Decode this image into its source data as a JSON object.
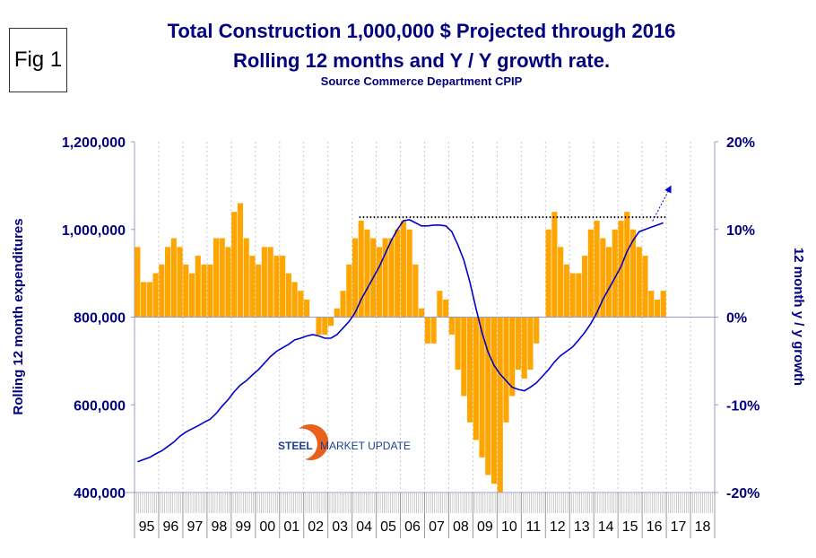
{
  "figure_label": "Fig 1",
  "logo": {
    "text_bold": "STEEL",
    "text_rest": "MARKET UPDATE"
  },
  "chart_data": {
    "type": "bar+line",
    "title": "Total Construction 1,000,000 $ Projected through 2016",
    "subtitle": "Rolling 12 months and Y / Y growth rate.",
    "source": "Source Commerce Department CPIP",
    "ylabel": "Rolling 12 month expenditures",
    "y2label": "12 month y / y growth",
    "ylim": [
      400000,
      1200000
    ],
    "y2lim": [
      -20,
      20
    ],
    "yticks": [
      "400,000",
      "600,000",
      "800,000",
      "1,000,000",
      "1,200,000"
    ],
    "y2ticks": [
      "-20%",
      "-10%",
      "0%",
      "10%",
      "20%"
    ],
    "xtick_labels": [
      "95",
      "96",
      "97",
      "98",
      "99",
      "00",
      "01",
      "02",
      "03",
      "04",
      "05",
      "06",
      "07",
      "08",
      "09",
      "10",
      "11",
      "12",
      "13",
      "14",
      "15",
      "16",
      "17",
      "18"
    ],
    "x_start_year": 1995,
    "grid": "vertical dotted",
    "period": "quarterly",
    "bars": {
      "color": "#FFA500",
      "unit": "%",
      "values": [
        8,
        4,
        4,
        5,
        6,
        8,
        9,
        8,
        6,
        5,
        7,
        6,
        6,
        9,
        9,
        8,
        12,
        13,
        9,
        7,
        6,
        8,
        8,
        7,
        7,
        5,
        4,
        3,
        2,
        0,
        -2,
        -2,
        -1,
        1,
        3,
        6,
        9,
        11,
        10,
        9,
        8,
        9,
        9,
        10,
        11,
        10,
        6,
        1,
        -3,
        -3,
        3,
        2,
        -2,
        -6,
        -9,
        -12,
        -14,
        -16,
        -18,
        -19,
        -20,
        -12,
        -9,
        -6,
        -7,
        -6,
        -3,
        0,
        10,
        12,
        8,
        6,
        5,
        5,
        7,
        10,
        11,
        9,
        8,
        10,
        11,
        12,
        10,
        8,
        7,
        3,
        2,
        3
      ]
    },
    "line": {
      "color": "#0000CC",
      "values": [
        470000,
        475000,
        480000,
        488000,
        495000,
        505000,
        515000,
        528000,
        538000,
        545000,
        552000,
        560000,
        567000,
        580000,
        597000,
        612000,
        630000,
        645000,
        655000,
        668000,
        680000,
        695000,
        710000,
        722000,
        730000,
        738000,
        748000,
        752000,
        757000,
        760000,
        757000,
        752000,
        752000,
        760000,
        775000,
        790000,
        810000,
        840000,
        865000,
        890000,
        915000,
        945000,
        975000,
        1000000,
        1020000,
        1022000,
        1015000,
        1008000,
        1008000,
        1010000,
        1010000,
        1008000,
        995000,
        965000,
        930000,
        880000,
        820000,
        765000,
        720000,
        690000,
        670000,
        655000,
        640000,
        635000,
        632000,
        640000,
        650000,
        665000,
        680000,
        698000,
        712000,
        722000,
        732000,
        748000,
        765000,
        785000,
        810000,
        840000,
        865000,
        890000,
        915000,
        950000,
        975000,
        995000,
        1000000,
        1005000,
        1010000,
        1015000
      ]
    },
    "reference_line": {
      "value": 1028000,
      "from_year": 2004.3,
      "to_year": 2017,
      "style": "dotted",
      "color": "#000000"
    },
    "annotation": "dashed blue arrow pointing up-right from end of line"
  }
}
